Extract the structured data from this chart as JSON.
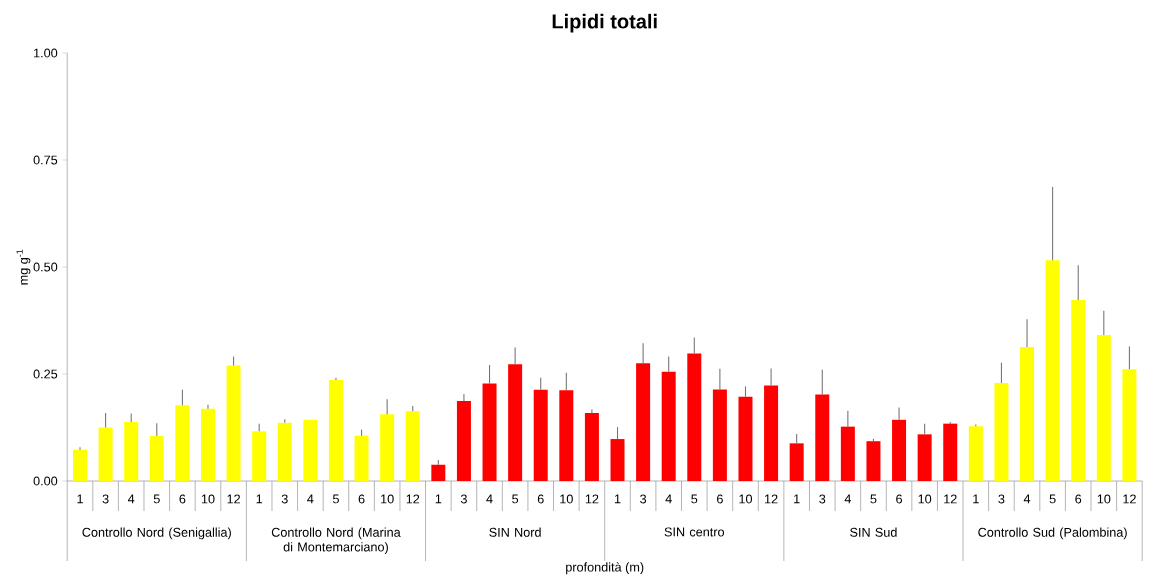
{
  "chart_data": {
    "type": "bar",
    "title": "Lipidi totali",
    "xlabel": "profondità (m)",
    "ylabel": "mg g$^{-1}$",
    "categories": [
      "1",
      "3",
      "4",
      "5",
      "6",
      "10",
      "12",
      "1",
      "3",
      "4",
      "5",
      "6",
      "10",
      "12",
      "1",
      "3",
      "4",
      "5",
      "6",
      "10",
      "12",
      "1",
      "3",
      "4",
      "5",
      "6",
      "10",
      "12",
      "1",
      "3",
      "4",
      "5",
      "6",
      "10",
      "12",
      "1",
      "3",
      "4",
      "5",
      "6",
      "10",
      "12"
    ],
    "values": [
      0.073,
      0.125,
      0.138,
      0.105,
      0.177,
      0.169,
      0.27,
      0.116,
      0.136,
      0.143,
      0.236,
      0.106,
      0.156,
      0.163,
      0.038,
      0.187,
      0.228,
      0.273,
      0.213,
      0.212,
      0.159,
      0.098,
      0.275,
      0.255,
      0.298,
      0.214,
      0.197,
      0.223,
      0.088,
      0.202,
      0.127,
      0.093,
      0.143,
      0.109,
      0.134,
      0.128,
      0.229,
      0.313,
      0.516,
      0.423,
      0.341,
      0.261
    ],
    "errors": [
      [
        0.073,
        0.079
      ],
      [
        0.125,
        0.159
      ],
      [
        0.138,
        0.158
      ],
      [
        0.105,
        0.135
      ],
      [
        0.177,
        0.213
      ],
      [
        0.169,
        0.178
      ],
      [
        0.27,
        0.291
      ],
      [
        0.116,
        0.134
      ],
      [
        0.136,
        0.144
      ],
      null,
      [
        0.236,
        0.241
      ],
      [
        0.106,
        0.12
      ],
      [
        0.156,
        0.191
      ],
      [
        0.163,
        0.175
      ],
      [
        0.038,
        0.049
      ],
      [
        0.187,
        0.203
      ],
      [
        0.228,
        0.271
      ],
      [
        0.273,
        0.312
      ],
      [
        0.213,
        0.241
      ],
      [
        0.212,
        0.253
      ],
      [
        0.159,
        0.167
      ],
      [
        0.098,
        0.126
      ],
      [
        0.275,
        0.322
      ],
      [
        0.255,
        0.291
      ],
      [
        0.298,
        0.335
      ],
      [
        0.214,
        0.262
      ],
      [
        0.197,
        0.221
      ],
      [
        0.223,
        0.263
      ],
      [
        0.088,
        0.11
      ],
      [
        0.202,
        0.26
      ],
      [
        0.127,
        0.164
      ],
      [
        0.093,
        0.099
      ],
      [
        0.143,
        0.172
      ],
      [
        0.109,
        0.134
      ],
      [
        0.134,
        0.138
      ],
      [
        0.128,
        0.132
      ],
      [
        0.229,
        0.276
      ],
      [
        0.313,
        0.378
      ],
      [
        0.516,
        0.687
      ],
      [
        0.423,
        0.504
      ],
      [
        0.341,
        0.398
      ],
      [
        0.261,
        0.314
      ]
    ],
    "colors": [
      "#ffff00",
      "#ffff00",
      "#ffff00",
      "#ffff00",
      "#ffff00",
      "#ffff00",
      "#ffff00",
      "#ffff00",
      "#ffff00",
      "#ffff00",
      "#ffff00",
      "#ffff00",
      "#ffff00",
      "#ffff00",
      "#ff0000",
      "#ff0000",
      "#ff0000",
      "#ff0000",
      "#ff0000",
      "#ff0000",
      "#ff0000",
      "#ff0000",
      "#ff0000",
      "#ff0000",
      "#ff0000",
      "#ff0000",
      "#ff0000",
      "#ff0000",
      "#ff0000",
      "#ff0000",
      "#ff0000",
      "#ff0000",
      "#ff0000",
      "#ff0000",
      "#ff0000",
      "#ffff00",
      "#ffff00",
      "#ffff00",
      "#ffff00",
      "#ffff00",
      "#ffff00",
      "#ffff00"
    ],
    "ylim": [
      0,
      1
    ],
    "yticks": [
      {
        "value": 0,
        "label": "0.00"
      },
      {
        "value": 0.25,
        "label": "0.25"
      },
      {
        "value": 0.5,
        "label": "0.50"
      },
      {
        "value": 0.75,
        "label": "0.75"
      },
      {
        "value": 1,
        "label": "1.00"
      }
    ],
    "annotations": [
      "Controllo Nord (Senigallia)",
      "Controllo Nord (Marina di Montemarciano)",
      "SIN Nord",
      "SIN centro",
      "SIN Sud",
      "Controllo Sud (Palombina)"
    ]
  }
}
